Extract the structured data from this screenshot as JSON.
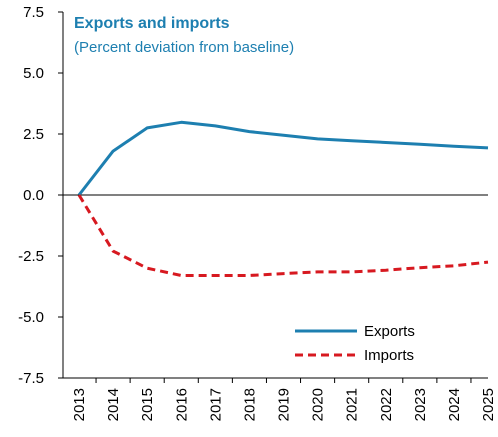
{
  "colors": {
    "title": "#1D7FB0",
    "exports": "#1D7FB0",
    "imports": "#D71920",
    "axis": "#000000"
  },
  "chart_data": {
    "type": "line",
    "title": "Exports and imports",
    "subtitle": "(Percent deviation from baseline)",
    "xlabel": "",
    "ylabel": "",
    "ylim": [
      -7.5,
      7.5
    ],
    "yticks": [
      -7.5,
      -5.0,
      -2.5,
      0.0,
      2.5,
      5.0,
      7.5
    ],
    "ytick_labels": [
      "-7.5",
      "-5.0",
      "-2.5",
      "0.0",
      "2.5",
      "5.0",
      "7.5"
    ],
    "x": [
      2013,
      2014,
      2015,
      2016,
      2017,
      2018,
      2019,
      2020,
      2021,
      2022,
      2023,
      2024,
      2025
    ],
    "x_labels": [
      "2013",
      "2014",
      "2015",
      "2016",
      "2017",
      "2018",
      "2019",
      "2020",
      "2021",
      "2022",
      "2023",
      "2024",
      "2025"
    ],
    "grid": false,
    "legend_position": "bottom-right",
    "series": [
      {
        "name": "Exports",
        "style": "solid",
        "values": [
          0.0,
          1.8,
          2.75,
          2.98,
          2.83,
          2.6,
          2.45,
          2.3,
          2.22,
          2.15,
          2.08,
          2.0,
          1.93
        ]
      },
      {
        "name": "Imports",
        "style": "dashed",
        "values": [
          0.0,
          -2.3,
          -3.0,
          -3.3,
          -3.3,
          -3.3,
          -3.22,
          -3.15,
          -3.15,
          -3.08,
          -2.98,
          -2.9,
          -2.75
        ]
      }
    ]
  }
}
